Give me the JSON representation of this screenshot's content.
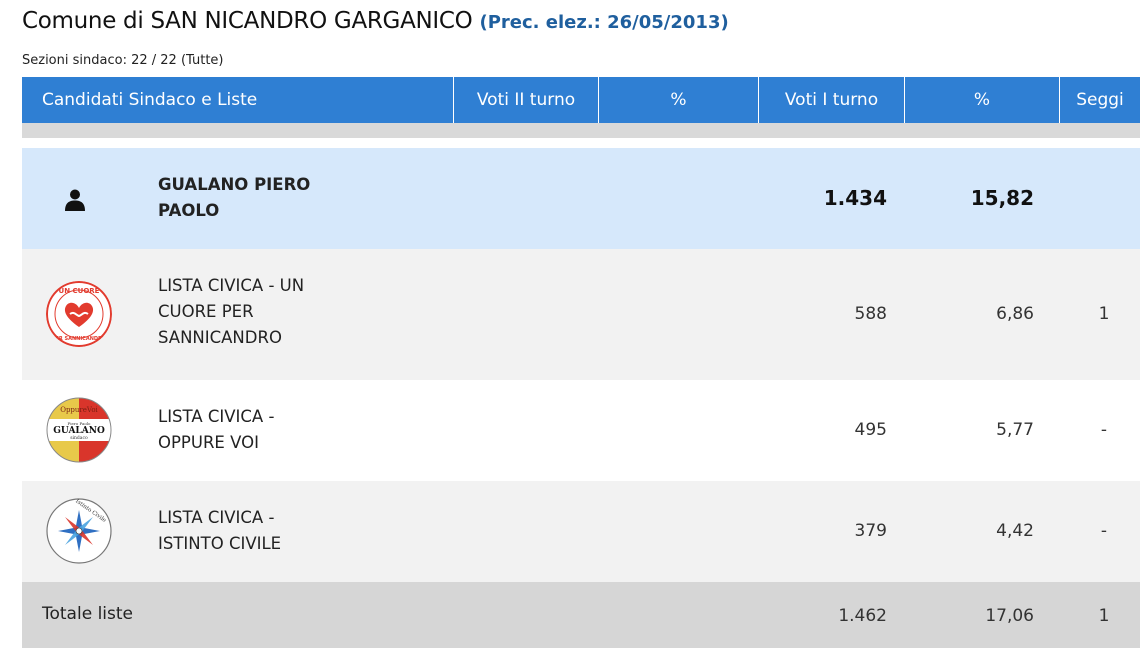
{
  "header": {
    "title": "Comune di SAN NICANDRO GARGANICO",
    "prev_elections": "(Prec. elez.: 26/05/2013)",
    "sections": "Sezioni sindaco: 22 / 22 (Tutte)"
  },
  "table": {
    "columns": {
      "candidates": "Candidati Sindaco e Liste",
      "votes_round2": "Voti II turno",
      "pct_round2": "%",
      "votes_round1": "Voti I turno",
      "pct_round1": "%",
      "seats": "Seggi"
    },
    "candidate": {
      "name_line1": "GUALANO PIERO",
      "name_line2": "PAOLO",
      "votes_round1": "1.434",
      "pct_round1": "15,82"
    },
    "lists": [
      {
        "name_lines": [
          "LISTA CIVICA - UN",
          "CUORE PER",
          "SANNICANDRO"
        ],
        "votes_round1": "588",
        "pct_round1": "6,86",
        "seats": "1",
        "logo": "un-cuore-per-sannicandro-logo"
      },
      {
        "name_lines": [
          "LISTA CIVICA -",
          "OPPURE VOI"
        ],
        "votes_round1": "495",
        "pct_round1": "5,77",
        "seats": "-",
        "logo": "oppure-voi-gualano-logo"
      },
      {
        "name_lines": [
          "LISTA CIVICA -",
          "ISTINTO CIVILE"
        ],
        "votes_round1": "379",
        "pct_round1": "4,42",
        "seats": "-",
        "logo": "istinto-civile-logo"
      }
    ],
    "total": {
      "label": "Totale liste",
      "votes_round1": "1.462",
      "pct_round1": "17,06",
      "seats": "1"
    }
  },
  "logos": {
    "cuore_text_top": "UN CUORE",
    "cuore_text_bottom": "PER SANNICANDRO",
    "oppure_text_top": "OppureVoi",
    "oppure_text_small": "Piero Paolo",
    "oppure_text_main": "GUALANO",
    "oppure_text_sub": "sindaco",
    "istinto_text": "Istinto Civile"
  },
  "colors": {
    "header_blue": "#2f7fd3",
    "candidate_row": "#d6e8fb",
    "alt_row": "#f2f2f2",
    "total_row": "#d6d6d6",
    "prev_elections": "#1f5f9e"
  }
}
